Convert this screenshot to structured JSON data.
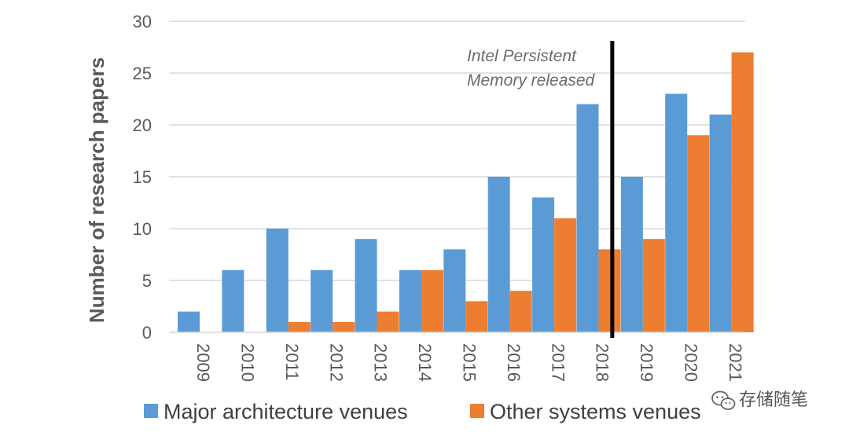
{
  "chart_data": {
    "type": "bar",
    "categories": [
      "2009",
      "2010",
      "2011",
      "2012",
      "2013",
      "2014",
      "2015",
      "2016",
      "2017",
      "2018",
      "2019",
      "2020",
      "2021"
    ],
    "series": [
      {
        "name": "Major architecture venues",
        "color": "#5b9bd5",
        "values": [
          2,
          6,
          10,
          6,
          9,
          6,
          8,
          15,
          13,
          22,
          15,
          23,
          21
        ]
      },
      {
        "name": "Other systems venues",
        "color": "#ed7d31",
        "values": [
          0,
          0,
          1,
          1,
          2,
          6,
          3,
          4,
          11,
          8,
          9,
          19,
          27
        ]
      }
    ],
    "title": "",
    "xlabel": "",
    "ylabel": "Number of research papers",
    "ylim": [
      0,
      30
    ],
    "yticks": [
      0,
      5,
      10,
      15,
      20,
      25,
      30
    ],
    "grid": true,
    "legend_position": "bottom",
    "annotation": {
      "lines": [
        "Intel Persistent",
        "Memory released"
      ],
      "marker_between": [
        "2018",
        "2019"
      ]
    }
  },
  "watermark": {
    "text": "存储随笔",
    "icon": "wechat-icon"
  }
}
